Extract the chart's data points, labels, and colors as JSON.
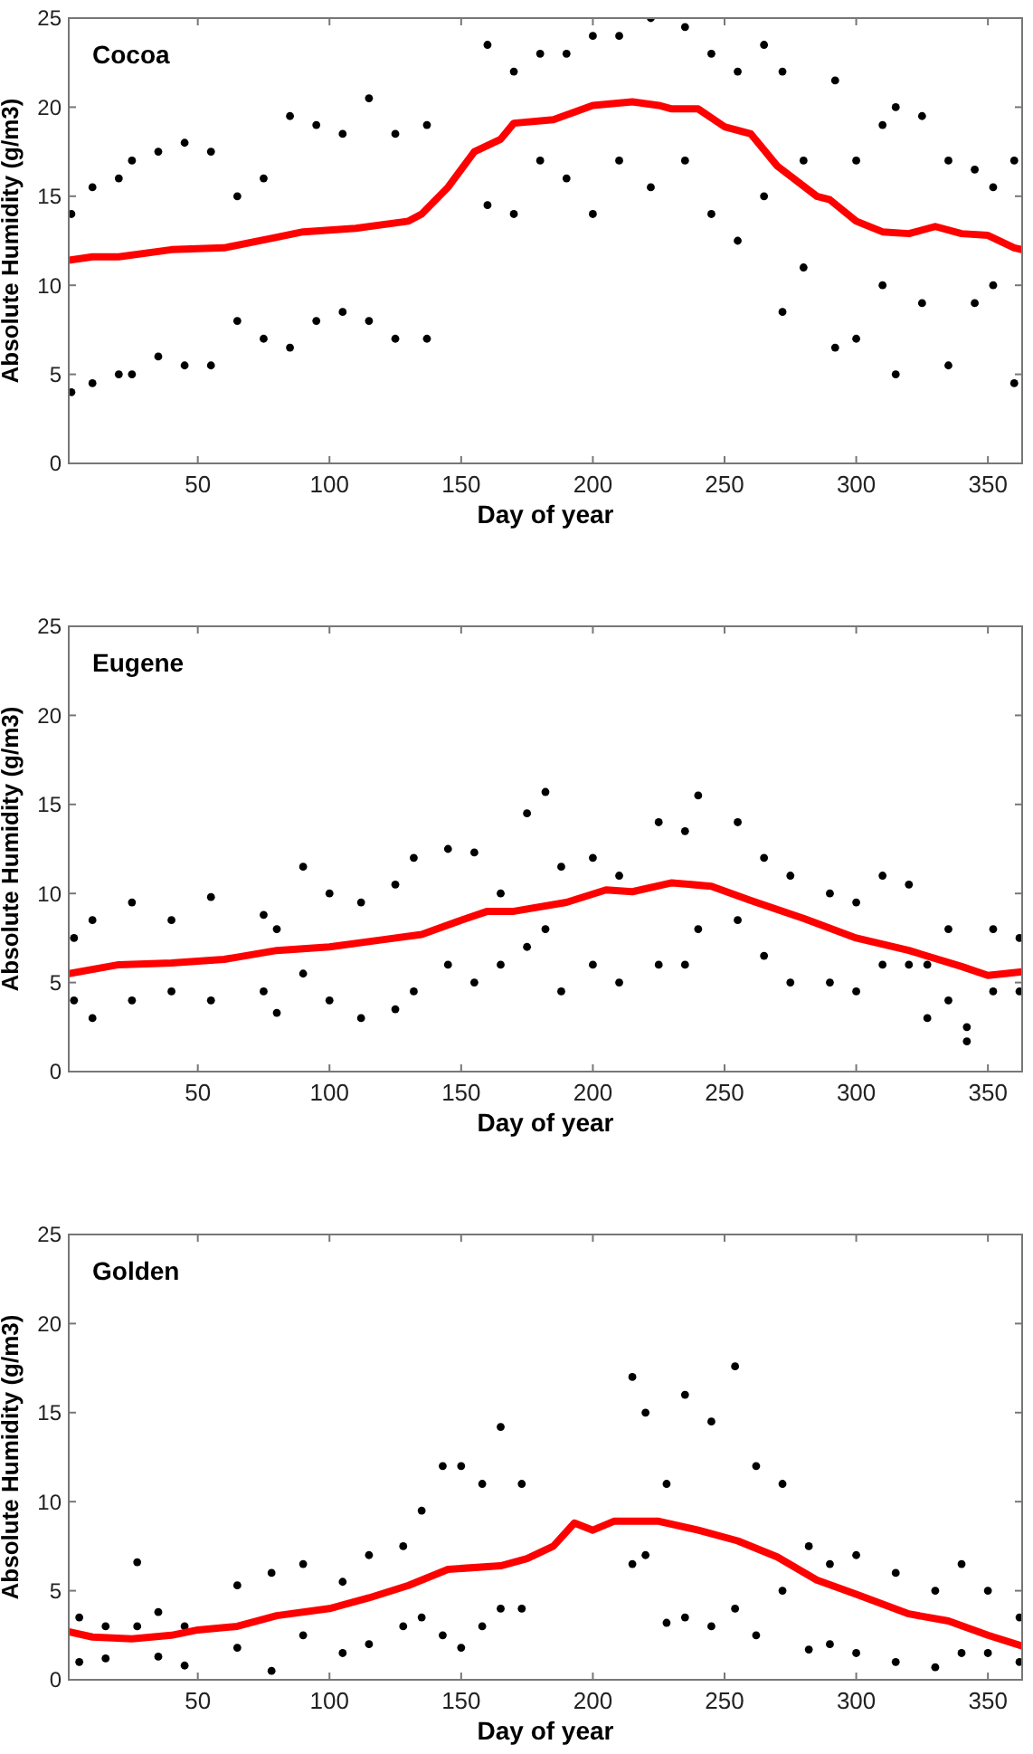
{
  "chart_data": [
    {
      "type": "scatter",
      "title": "Cocoa",
      "xlabel": "Day of year",
      "ylabel": "Absolute Humidity (g/m3)",
      "xlim": [
        1,
        363
      ],
      "xticks": [
        50,
        100,
        150,
        200,
        250,
        300,
        350
      ],
      "ylim": [
        0,
        25
      ],
      "yticks": [
        0,
        5,
        10,
        15,
        20,
        25
      ],
      "grid": false,
      "marker": "circle",
      "series": [
        {
          "color": "#000000",
          "x": [
            2,
            2,
            10,
            10,
            20,
            20,
            25,
            25,
            35,
            35,
            45,
            45,
            55,
            55,
            65,
            65,
            75,
            75,
            85,
            85,
            95,
            95,
            105,
            105,
            115,
            115,
            125,
            125,
            137,
            137,
            160,
            160,
            170,
            170,
            180,
            180,
            190,
            190,
            200,
            200,
            210,
            210,
            222,
            222,
            235,
            235,
            245,
            245,
            255,
            255,
            265,
            265,
            272,
            272,
            280,
            280,
            292,
            292,
            300,
            300,
            310,
            310,
            315,
            315,
            325,
            325,
            335,
            335,
            345,
            345,
            352,
            352,
            360,
            360
          ],
          "values": [
            14,
            4,
            15.5,
            4.5,
            16,
            5,
            17,
            5,
            17.5,
            6,
            18,
            5.5,
            17.5,
            5.5,
            15,
            8,
            16,
            7,
            19.5,
            6.5,
            19,
            8,
            18.5,
            8.5,
            20.5,
            8,
            18.5,
            7,
            19,
            7,
            23.5,
            14.5,
            22,
            14,
            23,
            17,
            23,
            16,
            24,
            14,
            24,
            17,
            25,
            15.5,
            24.5,
            17,
            23,
            14,
            22,
            12.5,
            23.5,
            15,
            22,
            8.5,
            17,
            11,
            21.5,
            6.5,
            17,
            7,
            19,
            10,
            20,
            5,
            19.5,
            9,
            17,
            5.5,
            16.5,
            9,
            15.5,
            10,
            17,
            4.5
          ]
        },
        {
          "type": "line",
          "marker": "none",
          "color": "#ff0000",
          "x": [
            1,
            10,
            20,
            40,
            60,
            80,
            90,
            110,
            130,
            135,
            145,
            155,
            165,
            170,
            185,
            200,
            215,
            225,
            230,
            240,
            250,
            260,
            270,
            285,
            290,
            300,
            310,
            320,
            330,
            340,
            350,
            360,
            363
          ],
          "values": [
            11.4,
            11.6,
            11.6,
            12,
            12.1,
            12.7,
            13,
            13.2,
            13.6,
            14,
            15.5,
            17.5,
            18.2,
            19.1,
            19.3,
            20.1,
            20.3,
            20.1,
            19.9,
            19.9,
            18.9,
            18.5,
            16.7,
            15,
            14.8,
            13.6,
            13,
            12.9,
            13.3,
            12.9,
            12.8,
            12.1,
            12
          ]
        }
      ]
    },
    {
      "type": "scatter",
      "title": "Eugene",
      "xlabel": "Day of year",
      "ylabel": "Absolute Humidity (g/m3)",
      "xlim": [
        1,
        363
      ],
      "xticks": [
        50,
        100,
        150,
        200,
        250,
        300,
        350
      ],
      "ylim": [
        0,
        25
      ],
      "yticks": [
        0,
        5,
        10,
        15,
        20,
        25
      ],
      "grid": false,
      "marker": "circle",
      "series": [
        {
          "color": "#000000",
          "x": [
            3,
            3,
            10,
            10,
            25,
            25,
            40,
            40,
            55,
            55,
            75,
            75,
            80,
            80,
            90,
            90,
            100,
            100,
            112,
            112,
            125,
            125,
            132,
            132,
            145,
            145,
            155,
            155,
            165,
            165,
            175,
            175,
            182,
            182,
            188,
            188,
            200,
            200,
            210,
            210,
            225,
            225,
            235,
            235,
            240,
            240,
            255,
            255,
            265,
            265,
            275,
            275,
            290,
            290,
            300,
            300,
            310,
            310,
            320,
            320,
            327,
            327,
            335,
            335,
            342,
            342,
            352,
            352,
            362,
            362
          ],
          "values": [
            7.5,
            4,
            8.5,
            3,
            9.5,
            4,
            8.5,
            4.5,
            9.8,
            4,
            8.8,
            4.5,
            8,
            3.3,
            11.5,
            5.5,
            10,
            4,
            9.5,
            3,
            10.5,
            3.5,
            12,
            4.5,
            12.5,
            6,
            12.3,
            5,
            10,
            6,
            14.5,
            7,
            15.7,
            8,
            11.5,
            4.5,
            12,
            6,
            11,
            5,
            14,
            6,
            13.5,
            6,
            15.5,
            8,
            14,
            8.5,
            12,
            6.5,
            11,
            5,
            10,
            5,
            9.5,
            4.5,
            11,
            6,
            10.5,
            6,
            6,
            3,
            8,
            4,
            2.5,
            1.7,
            8,
            4.5,
            7.5,
            4.5
          ]
        },
        {
          "type": "line",
          "marker": "none",
          "color": "#ff0000",
          "x": [
            1,
            20,
            40,
            60,
            80,
            100,
            120,
            135,
            150,
            160,
            170,
            190,
            205,
            215,
            230,
            245,
            260,
            280,
            300,
            320,
            340,
            350,
            363
          ],
          "values": [
            5.5,
            6,
            6.1,
            6.3,
            6.8,
            7,
            7.4,
            7.7,
            8.5,
            9,
            9,
            9.5,
            10.2,
            10.1,
            10.6,
            10.4,
            9.6,
            8.6,
            7.5,
            6.8,
            5.9,
            5.4,
            5.6
          ]
        }
      ]
    },
    {
      "type": "scatter",
      "title": "Golden",
      "xlabel": "Day of year",
      "ylabel": "Absolute Humidity (g/m3)",
      "xlim": [
        1,
        363
      ],
      "xticks": [
        50,
        100,
        150,
        200,
        250,
        300,
        350
      ],
      "ylim": [
        0,
        25
      ],
      "yticks": [
        0,
        5,
        10,
        15,
        20,
        25
      ],
      "grid": false,
      "marker": "circle",
      "series": [
        {
          "color": "#000000",
          "x": [
            5,
            5,
            15,
            15,
            27,
            27,
            35,
            35,
            45,
            45,
            65,
            65,
            78,
            78,
            90,
            90,
            105,
            105,
            115,
            115,
            128,
            128,
            135,
            135,
            143,
            143,
            150,
            150,
            158,
            158,
            165,
            165,
            173,
            173,
            215,
            215,
            220,
            220,
            228,
            228,
            235,
            235,
            245,
            245,
            254,
            254,
            262,
            262,
            272,
            272,
            282,
            282,
            290,
            290,
            300,
            300,
            315,
            315,
            330,
            330,
            340,
            340,
            350,
            350,
            362,
            362
          ],
          "values": [
            3.5,
            1,
            3,
            1.2,
            6.6,
            3,
            3.8,
            1.3,
            3,
            0.8,
            5.3,
            1.8,
            6,
            0.5,
            6.5,
            2.5,
            5.5,
            1.5,
            7,
            2,
            7.5,
            3,
            9.5,
            3.5,
            12,
            2.5,
            12,
            1.8,
            11,
            3,
            14.2,
            4,
            11,
            4,
            17,
            6.5,
            15,
            7,
            11,
            3.2,
            16,
            3.5,
            14.5,
            3,
            17.6,
            4,
            12,
            2.5,
            11,
            5,
            7.5,
            1.7,
            6.5,
            2,
            7,
            1.5,
            6,
            1,
            5,
            0.7,
            6.5,
            1.5,
            5,
            1.5,
            3.5,
            1
          ]
        },
        {
          "type": "line",
          "marker": "none",
          "color": "#ff0000",
          "x": [
            1,
            10,
            25,
            40,
            50,
            65,
            80,
            100,
            115,
            130,
            145,
            165,
            175,
            185,
            193,
            200,
            208,
            225,
            240,
            255,
            270,
            285,
            300,
            320,
            335,
            350,
            363
          ],
          "values": [
            2.7,
            2.4,
            2.3,
            2.5,
            2.8,
            3,
            3.6,
            4,
            4.6,
            5.3,
            6.2,
            6.4,
            6.8,
            7.5,
            8.8,
            8.4,
            8.9,
            8.9,
            8.4,
            7.8,
            6.9,
            5.6,
            4.8,
            3.7,
            3.3,
            2.5,
            1.9
          ]
        }
      ]
    }
  ]
}
